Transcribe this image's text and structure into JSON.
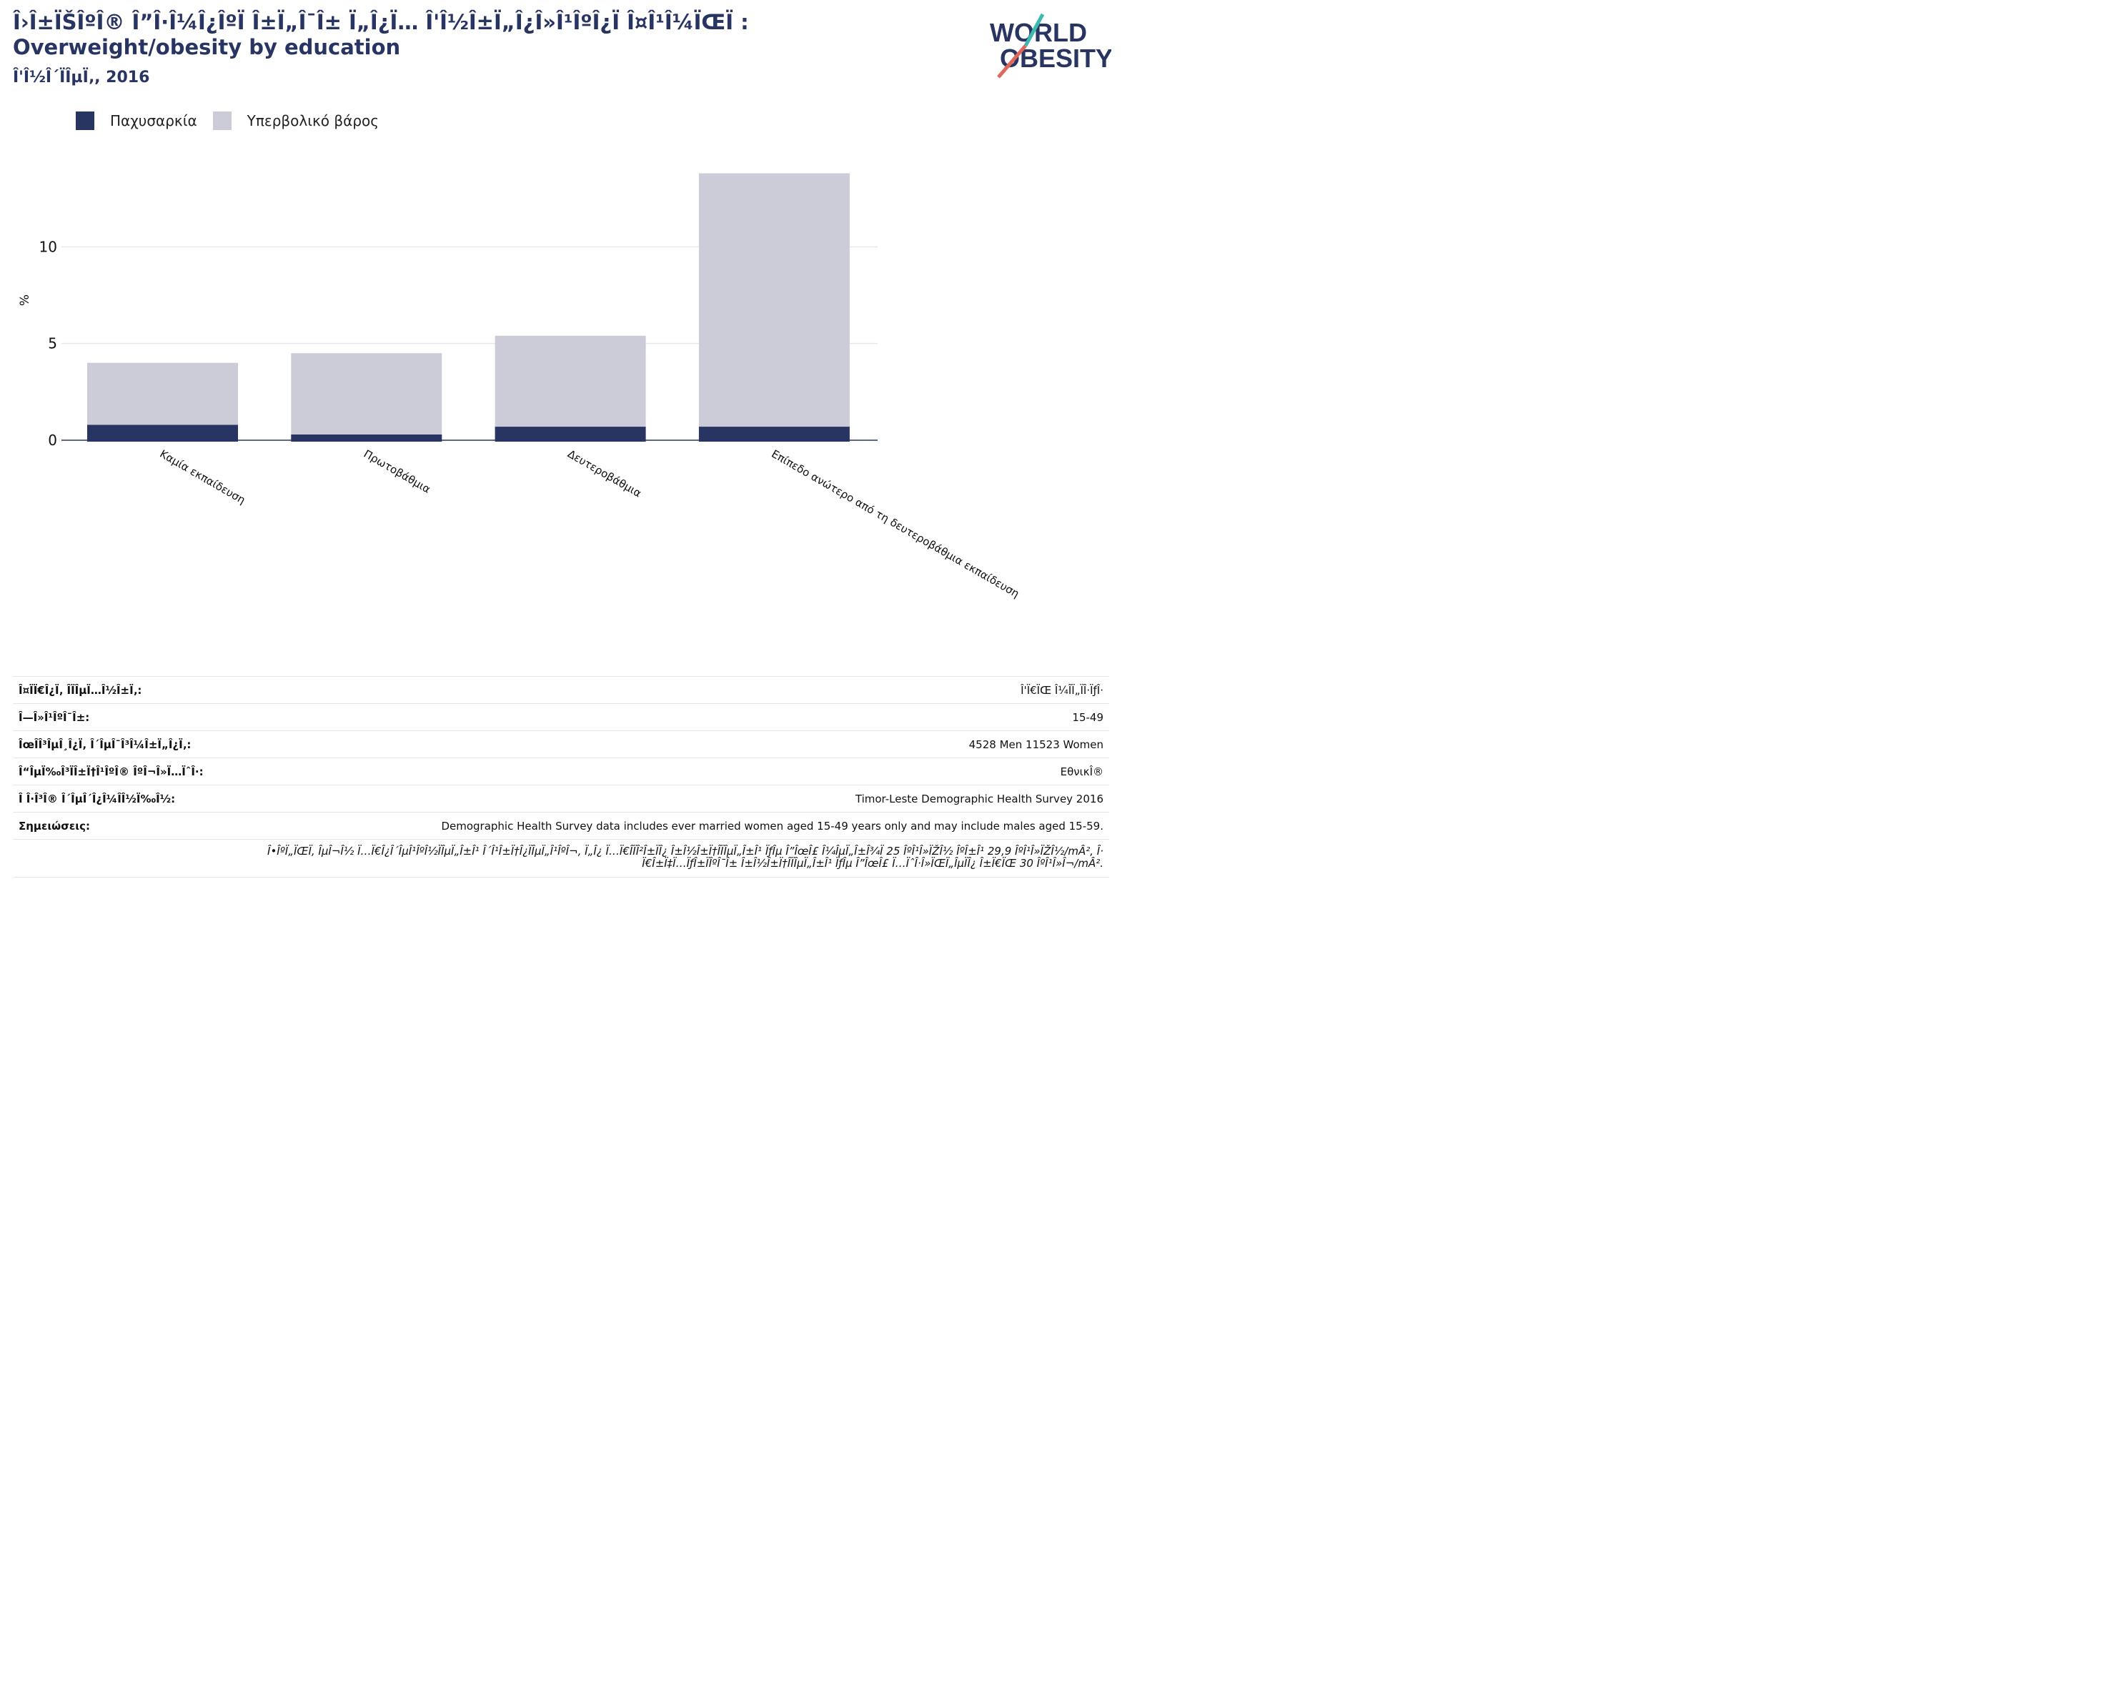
{
  "header": {
    "title_line1": "Î›Î±ÏŠÎºÎ® Î”Î·Î¼Î¿ÎºÏ Î±Ï„Î¯Î± Ï„Î¿Ï… Î'Î½Î±Ï„Î¿Î»Î¹ÎºÎ¿Ï  Î¤Î¹Î¼ÏŒÏ :",
    "title_line2": "Overweight/obesity by education",
    "subtitle": "Î'Î½Î´ÏÎµÏ‚, 2016"
  },
  "logo": {
    "line1": "WORLD",
    "line2": "OBESITY",
    "text_color": "#283462",
    "accent_teal": "#3fb8b0",
    "accent_coral": "#e0675a"
  },
  "colors": {
    "obesity": "#283462",
    "overweight": "#cbccd8",
    "grid": "#e6e8f0",
    "axis": "#283462"
  },
  "chart_data": {
    "type": "bar",
    "stacked": true,
    "title": "Overweight/obesity by education",
    "ylabel": "%",
    "ylim": [
      0,
      15
    ],
    "yticks": [
      0,
      5,
      10
    ],
    "categories": [
      "Καμία εκπαίδευση",
      "Πρωτοβάθμια",
      "Δευτεροβάθμια",
      "Επίπεδο ανώτερο από τη δευτεροβάθμια εκπαίδευση"
    ],
    "series": [
      {
        "name": "Παχυσαρκία",
        "values": [
          0.8,
          0.3,
          0.7,
          0.7
        ]
      },
      {
        "name": "Υπερβολικό βάρος",
        "values": [
          3.2,
          4.2,
          4.7,
          13.1
        ]
      }
    ],
    "legend": "top-left",
    "grid": true
  },
  "meta": {
    "rows": [
      {
        "label": "Î¤ÏÏ€Î¿Ï‚ Î­ÏÎµÏ…Î½Î±Ï‚:",
        "value": "Î'Ï€ÏŒ Î¼Î­Ï„ÏÎ·ÏƒÎ·"
      },
      {
        "label": "Î—Î»Î¹ÎºÎ¯Î±:",
        "value": "15-49"
      },
      {
        "label": "ÎœÎ­Î³ÎµÎ¸Î¿Ï‚ Î´ÎµÎ¯Î³Î¼Î±Ï„Î¿Ï‚:",
        "value": "4528 Men 11523 Women"
      },
      {
        "label": "Î“ÎµÏ‰Î³ÏÎ±Ï†Î¹ÎºÎ® ÎºÎ¬Î»Ï…ÏˆÎ·:",
        "value": "ΕθνικÎ®"
      },
      {
        "label": "Î Î·Î³Î® Î´ÎµÎ´Î¿Î¼Î­Î½Ï‰Î½:",
        "value": "Timor-Leste Demographic Health Survey 2016"
      },
      {
        "label": "Σημειώσεις:",
        "value": "Demographic Health Survey data includes ever married women aged 15-49 years only and may include males aged 15-59."
      }
    ],
    "footnote_line1": "Î•ÎºÏ„ÏŒÏ‚ ÎµÎ¬Î½ Ï…Ï€Î¿Î´ÎµÎ¹ÎºÎ½ÏÎµÏ„Î±Î¹ Î´Î¹Î±Ï†Î¿ÏÎµÏ„Î¹ÎºÎ¬, Ï„Î¿ Ï…Ï€Î­ÏÎ²Î±ÏÎ¿ Î±Î½Î±Ï†Î­ÏÎµÏ„Î±Î¹ ÏƒÎµ Î”ÎœÎ£ Î¼ÎµÏ„Î±Î¾Ï 25 ÎºÎ¹Î»ÏŽÎ½ ÎºÎ±Î¹ 29,9 ÎºÎ¹Î»ÏŽÎ½/mÂ², Î·",
    "footnote_line2": "Ï€Î±Ï‡Ï…ÏƒÎ±ÏÎºÎ¯Î± Î±Î½Î±Ï†Î­ÏÎµÏ„Î±Î¹ ÏƒÎµ Î”ÎœÎ£ Ï…ÏˆÎ·Î»ÏŒÏ„ÎµÏÎ¿ Î±Ï€ÏŒ 30 ÎºÎ¹Î»Î¬/mÂ²."
  }
}
